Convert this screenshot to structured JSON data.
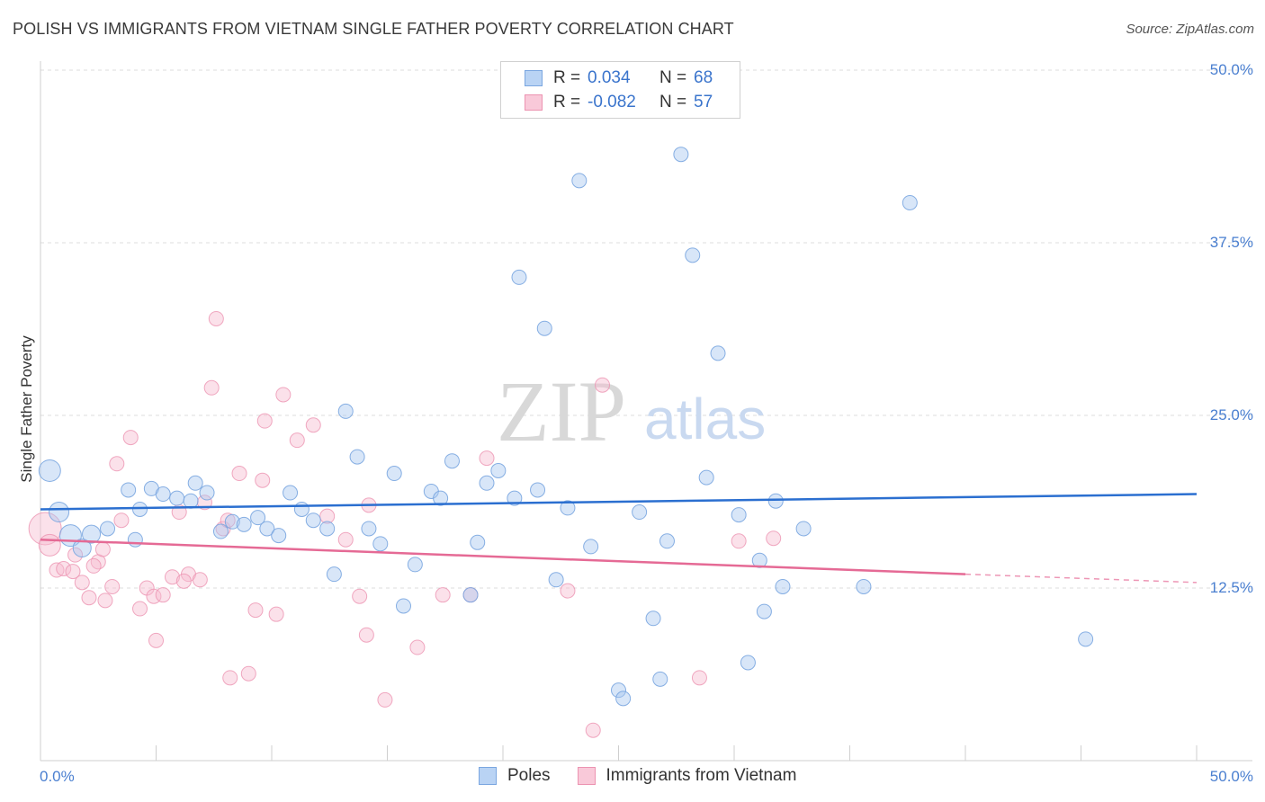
{
  "title": "POLISH VS IMMIGRANTS FROM VIETNAM SINGLE FATHER POVERTY CORRELATION CHART",
  "source": "Source: ZipAtlas.com",
  "watermark": {
    "zip": "ZIP",
    "atlas": "atlas"
  },
  "legend": {
    "rows": [
      {
        "r_label": "R =",
        "r_value": "0.034",
        "n_label": "N =",
        "n_value": "68"
      },
      {
        "r_label": "R =",
        "r_value": "-0.082",
        "n_label": "N =",
        "n_value": "57"
      }
    ]
  },
  "bottom_legend": {
    "poles": "Poles",
    "vietnam": "Immigrants from Vietnam"
  },
  "colors": {
    "poles_fill": "#a9c8f0",
    "poles_stroke": "#7aa6e0",
    "poles_line": "#2b6fd0",
    "vietnam_fill": "#f6bcd0",
    "vietnam_stroke": "#ec93b1",
    "vietnam_line": "#e56a95",
    "tick_text": "#4a7fd0"
  },
  "chart_data": {
    "type": "scatter",
    "title": "POLISH VS IMMIGRANTS FROM VIETNAM SINGLE FATHER POVERTY CORRELATION CHART",
    "xlabel": "",
    "ylabel": "Single Father Poverty",
    "xlim": [
      0,
      50
    ],
    "ylim": [
      0,
      50
    ],
    "x_tick_labels": [
      "0.0%",
      "50.0%"
    ],
    "y_ticks": [
      12.5,
      25.0,
      37.5,
      50.0
    ],
    "y_tick_labels": [
      "12.5%",
      "25.0%",
      "37.5%",
      "50.0%"
    ],
    "grid": "horizontal dashed",
    "legend_position": "top-center",
    "series": [
      {
        "name": "Poles",
        "r": 0.034,
        "n": 68,
        "trend": {
          "x": [
            0,
            50
          ],
          "y": [
            18.2,
            19.3
          ]
        },
        "points": [
          [
            0.4,
            21.0,
            12
          ],
          [
            0.8,
            18.0,
            11
          ],
          [
            1.3,
            16.3,
            12
          ],
          [
            1.8,
            15.4,
            10
          ],
          [
            2.2,
            16.4,
            10
          ],
          [
            2.9,
            16.8,
            8
          ],
          [
            3.8,
            19.6,
            8
          ],
          [
            4.3,
            18.2,
            8
          ],
          [
            4.8,
            19.7,
            8
          ],
          [
            5.3,
            19.3,
            8
          ],
          [
            5.9,
            19.0,
            8
          ],
          [
            6.5,
            18.8,
            8
          ],
          [
            6.7,
            20.1,
            8
          ],
          [
            7.2,
            19.4,
            8
          ],
          [
            7.8,
            16.6,
            8
          ],
          [
            8.3,
            17.3,
            8
          ],
          [
            8.8,
            17.1,
            8
          ],
          [
            9.4,
            17.6,
            8
          ],
          [
            9.8,
            16.8,
            8
          ],
          [
            10.3,
            16.3,
            8
          ],
          [
            10.8,
            19.4,
            8
          ],
          [
            11.3,
            18.2,
            8
          ],
          [
            11.8,
            17.4,
            8
          ],
          [
            12.4,
            16.8,
            8
          ],
          [
            12.7,
            13.5,
            8
          ],
          [
            13.2,
            25.3,
            8
          ],
          [
            13.7,
            22.0,
            8
          ],
          [
            14.2,
            16.8,
            8
          ],
          [
            14.7,
            15.7,
            8
          ],
          [
            15.3,
            20.8,
            8
          ],
          [
            15.7,
            11.2,
            8
          ],
          [
            16.2,
            14.2,
            8
          ],
          [
            16.9,
            19.5,
            8
          ],
          [
            17.3,
            19.0,
            8
          ],
          [
            17.8,
            21.7,
            8
          ],
          [
            18.6,
            12.0,
            8
          ],
          [
            18.9,
            15.8,
            8
          ],
          [
            19.3,
            20.1,
            8
          ],
          [
            19.8,
            21.0,
            8
          ],
          [
            20.5,
            19.0,
            8
          ],
          [
            20.7,
            35.0,
            8
          ],
          [
            21.5,
            19.6,
            8
          ],
          [
            21.8,
            31.3,
            8
          ],
          [
            22.3,
            13.1,
            8
          ],
          [
            22.8,
            18.3,
            8
          ],
          [
            23.3,
            42.0,
            8
          ],
          [
            23.8,
            15.5,
            8
          ],
          [
            25.0,
            5.1,
            8
          ],
          [
            25.2,
            4.5,
            8
          ],
          [
            25.9,
            18.0,
            8
          ],
          [
            26.5,
            10.3,
            8
          ],
          [
            26.8,
            5.9,
            8
          ],
          [
            27.1,
            15.9,
            8
          ],
          [
            27.7,
            43.9,
            8
          ],
          [
            28.2,
            36.6,
            8
          ],
          [
            28.8,
            20.5,
            8
          ],
          [
            29.3,
            29.5,
            8
          ],
          [
            30.2,
            17.8,
            8
          ],
          [
            30.6,
            7.1,
            8
          ],
          [
            31.1,
            14.5,
            8
          ],
          [
            31.3,
            10.8,
            8
          ],
          [
            31.8,
            18.8,
            8
          ],
          [
            32.1,
            12.6,
            8
          ],
          [
            33.0,
            16.8,
            8
          ],
          [
            35.6,
            12.6,
            8
          ],
          [
            37.6,
            40.4,
            8
          ],
          [
            45.2,
            8.8,
            8
          ],
          [
            4.1,
            16.0,
            8
          ]
        ]
      },
      {
        "name": "Immigrants from Vietnam",
        "r": -0.082,
        "n": 57,
        "trend": {
          "x": [
            0,
            40
          ],
          "y": [
            16.0,
            13.5
          ]
        },
        "trend_dashed": {
          "x": [
            40,
            50
          ],
          "y": [
            13.5,
            12.9
          ]
        },
        "points": [
          [
            0.2,
            16.8,
            18
          ],
          [
            0.4,
            15.6,
            12
          ],
          [
            0.7,
            13.8,
            8
          ],
          [
            1.0,
            13.9,
            8
          ],
          [
            1.4,
            13.7,
            8
          ],
          [
            1.8,
            12.9,
            8
          ],
          [
            2.1,
            11.8,
            8
          ],
          [
            2.5,
            14.4,
            8
          ],
          [
            2.7,
            15.3,
            8
          ],
          [
            2.8,
            11.6,
            8
          ],
          [
            3.1,
            12.6,
            8
          ],
          [
            3.3,
            21.5,
            8
          ],
          [
            3.5,
            17.4,
            8
          ],
          [
            3.9,
            23.4,
            8
          ],
          [
            4.3,
            11.0,
            8
          ],
          [
            4.6,
            12.5,
            8
          ],
          [
            4.9,
            11.9,
            8
          ],
          [
            5.0,
            8.7,
            8
          ],
          [
            5.3,
            12.0,
            8
          ],
          [
            5.7,
            13.3,
            8
          ],
          [
            6.0,
            18.0,
            8
          ],
          [
            6.4,
            13.5,
            8
          ],
          [
            6.9,
            13.1,
            8
          ],
          [
            7.1,
            18.7,
            8
          ],
          [
            7.4,
            27.0,
            8
          ],
          [
            7.6,
            32.0,
            8
          ],
          [
            7.9,
            16.8,
            8
          ],
          [
            8.1,
            17.4,
            8
          ],
          [
            8.2,
            6.0,
            8
          ],
          [
            8.6,
            20.8,
            8
          ],
          [
            9.0,
            6.3,
            8
          ],
          [
            9.3,
            10.9,
            8
          ],
          [
            9.6,
            20.3,
            8
          ],
          [
            9.7,
            24.6,
            8
          ],
          [
            10.2,
            10.6,
            8
          ],
          [
            10.5,
            26.5,
            8
          ],
          [
            11.1,
            23.2,
            8
          ],
          [
            11.8,
            24.3,
            8
          ],
          [
            12.4,
            17.7,
            8
          ],
          [
            13.2,
            16.0,
            8
          ],
          [
            13.8,
            11.9,
            8
          ],
          [
            14.1,
            9.1,
            8
          ],
          [
            14.2,
            18.5,
            8
          ],
          [
            14.9,
            4.4,
            8
          ],
          [
            16.3,
            8.2,
            8
          ],
          [
            17.4,
            12.0,
            8
          ],
          [
            18.6,
            12.0,
            8
          ],
          [
            19.3,
            21.9,
            8
          ],
          [
            22.8,
            12.3,
            8
          ],
          [
            23.9,
            2.2,
            8
          ],
          [
            24.3,
            27.2,
            8
          ],
          [
            28.5,
            6.0,
            8
          ],
          [
            30.2,
            15.9,
            8
          ],
          [
            31.7,
            16.1,
            8
          ],
          [
            1.5,
            14.9,
            8
          ],
          [
            2.3,
            14.1,
            8
          ],
          [
            6.2,
            13.0,
            8
          ]
        ]
      }
    ]
  }
}
